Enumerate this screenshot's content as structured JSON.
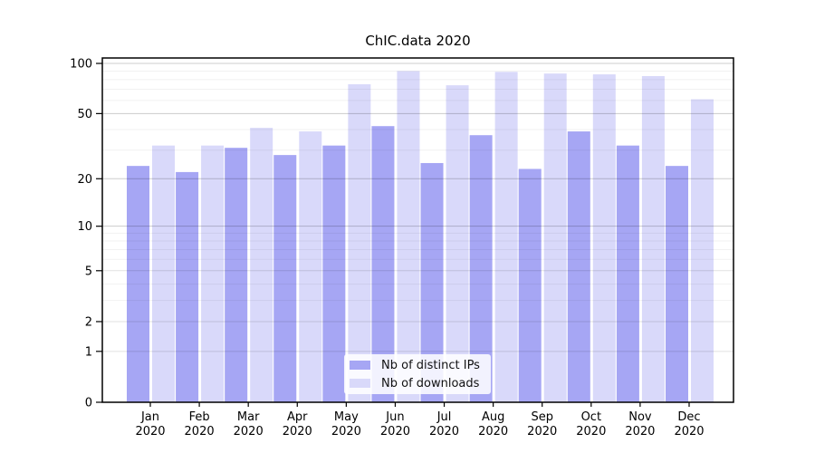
{
  "chart_data": {
    "type": "bar",
    "title": "ChIC.data 2020",
    "categories": [
      "Jan",
      "Feb",
      "Mar",
      "Apr",
      "May",
      "Jun",
      "Jul",
      "Aug",
      "Sep",
      "Oct",
      "Nov",
      "Dec"
    ],
    "category_year": "2020",
    "series": [
      {
        "name": "Nb of distinct IPs",
        "color": "#a6a6f4",
        "values": [
          24,
          22,
          31,
          28,
          32,
          42,
          25,
          37,
          23,
          39,
          32,
          24
        ]
      },
      {
        "name": "Nb of downloads",
        "color": "#d9d9fa",
        "values": [
          32,
          32,
          41,
          39,
          75,
          90,
          74,
          89,
          87,
          86,
          84,
          61
        ]
      }
    ],
    "xlabel": "",
    "ylabel": "",
    "yscale": "symlog-log1p",
    "ylim": [
      0,
      108
    ],
    "yticks": [
      0,
      1,
      2,
      5,
      10,
      20,
      50,
      100
    ],
    "grid": {
      "major": [
        10,
        20,
        50,
        100
      ],
      "medium": [
        1,
        2,
        5
      ],
      "minor": [
        3,
        4,
        6,
        7,
        8,
        9,
        30,
        40,
        60,
        70,
        80,
        90
      ]
    },
    "legend_position": "lower center"
  }
}
